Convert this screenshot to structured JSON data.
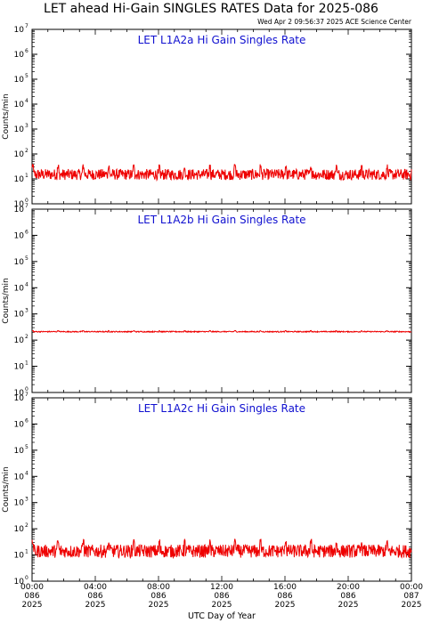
{
  "header": {
    "title": "LET ahead Hi-Gain SINGLES RATES Data for 2025-086",
    "timestamp": "Wed Apr  2 09:56:37 2025 ACE Science Center"
  },
  "colors": {
    "trace": "#ee0000",
    "panel_title": "#1010d0",
    "axes": "#000000"
  },
  "chart_data": [
    {
      "type": "line",
      "title": "LET L1A2a Hi Gain Singles Rate",
      "ylabel": "Counts/min",
      "yscale": "log",
      "ylim": [
        1,
        10000000
      ],
      "x_range_hours": [
        0,
        24
      ],
      "baseline": 15,
      "burst_peak": 28,
      "burst_interval_hours": 1.6,
      "noise_spread": 0.22,
      "y_ticks": [
        {
          "value": 1,
          "base": "10",
          "exp": "0"
        },
        {
          "value": 10,
          "base": "10",
          "exp": "1"
        },
        {
          "value": 100,
          "base": "10",
          "exp": "2"
        },
        {
          "value": 1000,
          "base": "10",
          "exp": "3"
        },
        {
          "value": 10000,
          "base": "10",
          "exp": "4"
        },
        {
          "value": 100000,
          "base": "10",
          "exp": "5"
        },
        {
          "value": 1000000,
          "base": "10",
          "exp": "6"
        },
        {
          "value": 10000000,
          "base": "10",
          "exp": "7"
        }
      ]
    },
    {
      "type": "line",
      "title": "LET L1A2b Hi Gain Singles Rate",
      "ylabel": "Counts/min",
      "yscale": "log",
      "ylim": [
        1,
        10000000
      ],
      "x_range_hours": [
        0,
        24
      ],
      "baseline": 210,
      "burst_peak": 225,
      "burst_interval_hours": 1.6,
      "noise_spread": 0.02,
      "y_ticks": [
        {
          "value": 1,
          "base": "10",
          "exp": "0"
        },
        {
          "value": 10,
          "base": "10",
          "exp": "1"
        },
        {
          "value": 100,
          "base": "10",
          "exp": "2"
        },
        {
          "value": 1000,
          "base": "10",
          "exp": "3"
        },
        {
          "value": 10000,
          "base": "10",
          "exp": "4"
        },
        {
          "value": 100000,
          "base": "10",
          "exp": "5"
        },
        {
          "value": 1000000,
          "base": "10",
          "exp": "6"
        },
        {
          "value": 10000000,
          "base": "10",
          "exp": "7"
        }
      ]
    },
    {
      "type": "line",
      "title": "LET L1A2c Hi Gain Singles Rate",
      "ylabel": "Counts/min",
      "yscale": "log",
      "ylim": [
        1,
        10000000
      ],
      "x_range_hours": [
        0,
        24
      ],
      "baseline": 14,
      "burst_peak": 28,
      "burst_interval_hours": 1.6,
      "noise_spread": 0.25,
      "y_ticks": [
        {
          "value": 1,
          "base": "10",
          "exp": "0"
        },
        {
          "value": 10,
          "base": "10",
          "exp": "1"
        },
        {
          "value": 100,
          "base": "10",
          "exp": "2"
        },
        {
          "value": 1000,
          "base": "10",
          "exp": "3"
        },
        {
          "value": 10000,
          "base": "10",
          "exp": "4"
        },
        {
          "value": 100000,
          "base": "10",
          "exp": "5"
        },
        {
          "value": 1000000,
          "base": "10",
          "exp": "6"
        },
        {
          "value": 10000000,
          "base": "10",
          "exp": "7"
        }
      ]
    }
  ],
  "x_axis": {
    "label": "UTC Day of Year",
    "ticks": [
      {
        "hour": 0,
        "time": "00:00",
        "doy": "086",
        "year": "2025"
      },
      {
        "hour": 4,
        "time": "04:00",
        "doy": "086",
        "year": "2025"
      },
      {
        "hour": 8,
        "time": "08:00",
        "doy": "086",
        "year": "2025"
      },
      {
        "hour": 12,
        "time": "12:00",
        "doy": "086",
        "year": "2025"
      },
      {
        "hour": 16,
        "time": "16:00",
        "doy": "086",
        "year": "2025"
      },
      {
        "hour": 20,
        "time": "20:00",
        "doy": "086",
        "year": "2025"
      },
      {
        "hour": 24,
        "time": "00:00",
        "doy": "087",
        "year": "2025"
      }
    ]
  }
}
